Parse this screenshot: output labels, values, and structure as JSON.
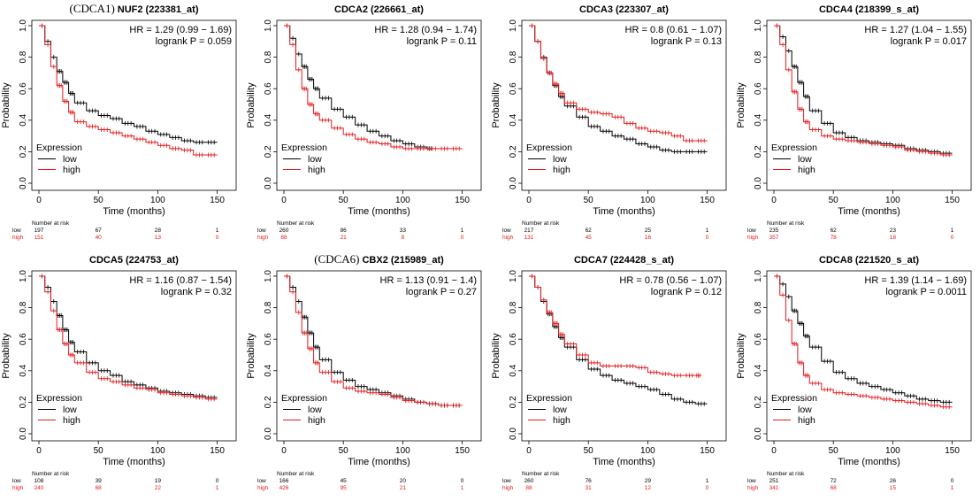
{
  "colors": {
    "low": "#000000",
    "high": "#e41a1c"
  },
  "chart_data": [
    {
      "type": "line",
      "prefix": "(CDCA1)",
      "title": "NUF2 (223381_at)",
      "hr_text": "HR = 1.29 (0.99 − 1.69)",
      "p_text": "logrank P = 0.059",
      "xlabel": "Time (months)",
      "ylabel": "Probability",
      "xlim": [
        0,
        160
      ],
      "ylim": [
        0,
        1
      ],
      "xticks": [
        "0",
        "50",
        "100",
        "150"
      ],
      "yticks": [
        "0.0",
        "0.2",
        "0.4",
        "0.6",
        "0.8",
        "1.0"
      ],
      "legend_title": "Expression",
      "series": [
        {
          "name": "low",
          "x": [
            0,
            5,
            10,
            15,
            20,
            25,
            30,
            40,
            50,
            60,
            70,
            80,
            90,
            100,
            110,
            120,
            130,
            140,
            150
          ],
          "y": [
            1.0,
            0.9,
            0.8,
            0.71,
            0.64,
            0.57,
            0.51,
            0.46,
            0.43,
            0.41,
            0.38,
            0.36,
            0.33,
            0.31,
            0.29,
            0.27,
            0.26,
            0.26,
            0.26
          ]
        },
        {
          "name": "high",
          "x": [
            0,
            5,
            10,
            15,
            20,
            25,
            30,
            40,
            50,
            60,
            70,
            80,
            90,
            100,
            110,
            120,
            130,
            140,
            150
          ],
          "y": [
            1.0,
            0.88,
            0.74,
            0.62,
            0.52,
            0.45,
            0.39,
            0.36,
            0.34,
            0.32,
            0.3,
            0.28,
            0.26,
            0.24,
            0.22,
            0.21,
            0.18,
            0.18,
            0.18
          ]
        }
      ],
      "risk_heading": "Number at risk",
      "risk": [
        {
          "label": "low",
          "values": [
            "197",
            "67",
            "28",
            "1"
          ]
        },
        {
          "label": "high",
          "values": [
            "151",
            "40",
            "13",
            "0"
          ]
        }
      ]
    },
    {
      "type": "line",
      "prefix": "",
      "title": "CDCA2 (226661_at)",
      "hr_text": "HR = 1.28 (0.94 − 1.74)",
      "p_text": "logrank P = 0.11",
      "xlabel": "Time (months)",
      "ylabel": "Probability",
      "xlim": [
        0,
        160
      ],
      "ylim": [
        0,
        1
      ],
      "xticks": [
        "0",
        "50",
        "100",
        "150"
      ],
      "yticks": [
        "0.0",
        "0.2",
        "0.4",
        "0.6",
        "0.8",
        "1.0"
      ],
      "legend_title": "Expression",
      "series": [
        {
          "name": "low",
          "x": [
            0,
            5,
            10,
            15,
            20,
            25,
            30,
            40,
            50,
            60,
            70,
            80,
            90,
            100,
            110,
            120,
            125
          ],
          "y": [
            1.0,
            0.92,
            0.82,
            0.74,
            0.66,
            0.6,
            0.54,
            0.47,
            0.42,
            0.37,
            0.33,
            0.3,
            0.27,
            0.25,
            0.23,
            0.22,
            0.22
          ]
        },
        {
          "name": "high",
          "x": [
            0,
            5,
            10,
            15,
            20,
            25,
            30,
            40,
            50,
            60,
            70,
            80,
            90,
            100,
            110,
            120,
            130,
            140,
            150
          ],
          "y": [
            1.0,
            0.88,
            0.72,
            0.6,
            0.5,
            0.44,
            0.4,
            0.35,
            0.31,
            0.28,
            0.26,
            0.25,
            0.23,
            0.22,
            0.22,
            0.22,
            0.22,
            0.22,
            0.22
          ]
        }
      ],
      "risk_heading": "Number at risk",
      "risk": [
        {
          "label": "low",
          "values": [
            "260",
            "86",
            "33",
            "1"
          ]
        },
        {
          "label": "high",
          "values": [
            "88",
            "21",
            "8",
            "0"
          ]
        }
      ]
    },
    {
      "type": "line",
      "prefix": "",
      "title": "CDCA3 (223307_at)",
      "hr_text": "HR = 0.8 (0.61 − 1.07)",
      "p_text": "logrank P = 0.13",
      "xlabel": "Time (months)",
      "ylabel": "Probability",
      "xlim": [
        0,
        160
      ],
      "ylim": [
        0,
        1
      ],
      "xticks": [
        "0",
        "50",
        "100",
        "150"
      ],
      "yticks": [
        "0.0",
        "0.2",
        "0.4",
        "0.6",
        "0.8",
        "1.0"
      ],
      "legend_title": "Expression",
      "series": [
        {
          "name": "low",
          "x": [
            0,
            5,
            10,
            15,
            20,
            25,
            30,
            40,
            50,
            60,
            70,
            80,
            90,
            100,
            110,
            120,
            130,
            140,
            150
          ],
          "y": [
            1.0,
            0.9,
            0.8,
            0.7,
            0.62,
            0.55,
            0.49,
            0.42,
            0.36,
            0.33,
            0.3,
            0.28,
            0.25,
            0.23,
            0.21,
            0.2,
            0.2,
            0.2,
            0.2
          ]
        },
        {
          "name": "high",
          "x": [
            0,
            5,
            10,
            15,
            20,
            25,
            30,
            40,
            50,
            60,
            70,
            80,
            90,
            100,
            110,
            120,
            130,
            140,
            150
          ],
          "y": [
            1.0,
            0.9,
            0.79,
            0.7,
            0.63,
            0.57,
            0.51,
            0.47,
            0.45,
            0.44,
            0.42,
            0.38,
            0.35,
            0.33,
            0.32,
            0.3,
            0.27,
            0.27,
            0.27
          ]
        }
      ],
      "risk_heading": "Number at risk",
      "risk": [
        {
          "label": "low",
          "values": [
            "217",
            "62",
            "25",
            "1"
          ]
        },
        {
          "label": "high",
          "values": [
            "131",
            "45",
            "16",
            "0"
          ]
        }
      ]
    },
    {
      "type": "line",
      "prefix": "",
      "title": "CDCA4 (218399_s_at)",
      "hr_text": "HR = 1.27 (1.04 − 1.55)",
      "p_text": "logrank P = 0.017",
      "xlabel": "Time (months)",
      "ylabel": "Probability",
      "xlim": [
        0,
        160
      ],
      "ylim": [
        0,
        1
      ],
      "xticks": [
        "0",
        "50",
        "100",
        "150"
      ],
      "yticks": [
        "0.0",
        "0.2",
        "0.4",
        "0.6",
        "0.8",
        "1.0"
      ],
      "legend_title": "Expression",
      "series": [
        {
          "name": "low",
          "x": [
            0,
            5,
            10,
            15,
            20,
            25,
            30,
            40,
            50,
            60,
            70,
            80,
            90,
            100,
            110,
            120,
            130,
            140,
            150
          ],
          "y": [
            1.0,
            0.93,
            0.84,
            0.74,
            0.64,
            0.55,
            0.46,
            0.38,
            0.32,
            0.29,
            0.27,
            0.26,
            0.25,
            0.24,
            0.22,
            0.21,
            0.2,
            0.19,
            0.19
          ]
        },
        {
          "name": "high",
          "x": [
            0,
            5,
            10,
            15,
            20,
            25,
            30,
            40,
            50,
            60,
            70,
            80,
            90,
            100,
            110,
            120,
            130,
            140,
            150
          ],
          "y": [
            1.0,
            0.88,
            0.72,
            0.58,
            0.47,
            0.39,
            0.34,
            0.3,
            0.28,
            0.27,
            0.26,
            0.25,
            0.24,
            0.23,
            0.21,
            0.2,
            0.19,
            0.18,
            0.18
          ]
        }
      ],
      "risk_heading": "Number at risk",
      "risk": [
        {
          "label": "low",
          "values": [
            "235",
            "62",
            "23",
            "1"
          ]
        },
        {
          "label": "high",
          "values": [
            "357",
            "78",
            "18",
            "0"
          ]
        }
      ]
    },
    {
      "type": "line",
      "prefix": "",
      "title": "CDCA5 (224753_at)",
      "hr_text": "HR = 1.16 (0.87 − 1.54)",
      "p_text": "logrank P = 0.32",
      "xlabel": "Time (months)",
      "ylabel": "Probability",
      "xlim": [
        0,
        160
      ],
      "ylim": [
        0,
        1
      ],
      "xticks": [
        "0",
        "50",
        "100",
        "150"
      ],
      "yticks": [
        "0.0",
        "0.2",
        "0.4",
        "0.6",
        "0.8",
        "1.0"
      ],
      "legend_title": "Expression",
      "series": [
        {
          "name": "low",
          "x": [
            0,
            5,
            10,
            15,
            20,
            25,
            30,
            40,
            50,
            60,
            70,
            80,
            90,
            100,
            110,
            120,
            130,
            140,
            150
          ],
          "y": [
            1.0,
            0.93,
            0.84,
            0.75,
            0.66,
            0.58,
            0.52,
            0.45,
            0.4,
            0.37,
            0.33,
            0.31,
            0.29,
            0.27,
            0.26,
            0.25,
            0.24,
            0.23,
            0.23
          ]
        },
        {
          "name": "high",
          "x": [
            0,
            5,
            10,
            15,
            20,
            25,
            30,
            40,
            50,
            60,
            70,
            80,
            90,
            100,
            110,
            120,
            130,
            140,
            150
          ],
          "y": [
            1.0,
            0.9,
            0.78,
            0.66,
            0.57,
            0.5,
            0.45,
            0.39,
            0.35,
            0.33,
            0.31,
            0.29,
            0.28,
            0.26,
            0.25,
            0.24,
            0.23,
            0.22,
            0.22
          ]
        }
      ],
      "risk_heading": "Number at risk",
      "risk": [
        {
          "label": "low",
          "values": [
            "108",
            "39",
            "19",
            "0"
          ]
        },
        {
          "label": "high",
          "values": [
            "240",
            "68",
            "22",
            "1"
          ]
        }
      ]
    },
    {
      "type": "line",
      "prefix": "(CDCA6)",
      "title": "CBX2 (215989_at)",
      "hr_text": "HR = 1.13 (0.91 − 1.4)",
      "p_text": "logrank P = 0.27",
      "xlabel": "Time (months)",
      "ylabel": "Probability",
      "xlim": [
        0,
        160
      ],
      "ylim": [
        0,
        1
      ],
      "xticks": [
        "0",
        "50",
        "100",
        "150"
      ],
      "yticks": [
        "0.0",
        "0.2",
        "0.4",
        "0.6",
        "0.8",
        "1.0"
      ],
      "legend_title": "Expression",
      "series": [
        {
          "name": "low",
          "x": [
            0,
            5,
            10,
            15,
            20,
            25,
            30,
            40,
            50,
            60,
            70,
            80,
            90,
            100,
            110,
            120,
            130,
            140,
            150
          ],
          "y": [
            1.0,
            0.93,
            0.84,
            0.74,
            0.64,
            0.55,
            0.47,
            0.39,
            0.34,
            0.3,
            0.28,
            0.26,
            0.24,
            0.22,
            0.2,
            0.19,
            0.18,
            0.18,
            0.18
          ]
        },
        {
          "name": "high",
          "x": [
            0,
            5,
            10,
            15,
            20,
            25,
            30,
            40,
            50,
            60,
            70,
            80,
            90,
            100,
            110,
            120,
            130,
            140,
            150
          ],
          "y": [
            1.0,
            0.9,
            0.77,
            0.64,
            0.54,
            0.45,
            0.39,
            0.33,
            0.29,
            0.27,
            0.26,
            0.25,
            0.23,
            0.21,
            0.2,
            0.19,
            0.18,
            0.18,
            0.18
          ]
        }
      ],
      "risk_heading": "Number at risk",
      "risk": [
        {
          "label": "low",
          "values": [
            "166",
            "45",
            "20",
            "0"
          ]
        },
        {
          "label": "high",
          "values": [
            "426",
            "95",
            "21",
            "1"
          ]
        }
      ]
    },
    {
      "type": "line",
      "prefix": "",
      "title": "CDCA7 (224428_s_at)",
      "hr_text": "HR = 0.78 (0.56 − 1.07)",
      "p_text": "logrank P = 0.12",
      "xlabel": "Time (months)",
      "ylabel": "Probability",
      "xlim": [
        0,
        160
      ],
      "ylim": [
        0,
        1
      ],
      "xticks": [
        "0",
        "50",
        "100",
        "150"
      ],
      "yticks": [
        "0.0",
        "0.2",
        "0.4",
        "0.6",
        "0.8",
        "1.0"
      ],
      "legend_title": "Expression",
      "series": [
        {
          "name": "low",
          "x": [
            0,
            5,
            10,
            15,
            20,
            25,
            30,
            40,
            50,
            60,
            70,
            80,
            90,
            100,
            110,
            120,
            130,
            140,
            150
          ],
          "y": [
            1.0,
            0.93,
            0.84,
            0.76,
            0.68,
            0.61,
            0.55,
            0.47,
            0.41,
            0.37,
            0.34,
            0.32,
            0.3,
            0.28,
            0.25,
            0.22,
            0.2,
            0.19,
            0.19
          ]
        },
        {
          "name": "high",
          "x": [
            0,
            5,
            10,
            15,
            20,
            25,
            30,
            40,
            50,
            60,
            70,
            80,
            90,
            100,
            110,
            120,
            130,
            140,
            145
          ],
          "y": [
            1.0,
            0.93,
            0.85,
            0.77,
            0.7,
            0.63,
            0.57,
            0.5,
            0.45,
            0.43,
            0.43,
            0.43,
            0.42,
            0.39,
            0.38,
            0.37,
            0.37,
            0.37,
            0.37
          ]
        }
      ],
      "risk_heading": "Number at risk",
      "risk": [
        {
          "label": "low",
          "values": [
            "260",
            "76",
            "29",
            "1"
          ]
        },
        {
          "label": "high",
          "values": [
            "88",
            "31",
            "12",
            "0"
          ]
        }
      ]
    },
    {
      "type": "line",
      "prefix": "",
      "title": "CDCA8 (221520_s_at)",
      "hr_text": "HR = 1.39 (1.14 − 1.69)",
      "p_text": "logrank P = 0.0011",
      "xlabel": "Time (months)",
      "ylabel": "Probability",
      "xlim": [
        0,
        160
      ],
      "ylim": [
        0,
        1
      ],
      "xticks": [
        "0",
        "50",
        "100",
        "150"
      ],
      "yticks": [
        "0.0",
        "0.2",
        "0.4",
        "0.6",
        "0.8",
        "1.0"
      ],
      "legend_title": "Expression",
      "series": [
        {
          "name": "low",
          "x": [
            0,
            5,
            10,
            15,
            20,
            25,
            30,
            40,
            50,
            60,
            70,
            80,
            90,
            100,
            110,
            120,
            130,
            140,
            150
          ],
          "y": [
            1.0,
            0.95,
            0.87,
            0.78,
            0.7,
            0.62,
            0.55,
            0.46,
            0.39,
            0.35,
            0.32,
            0.3,
            0.28,
            0.26,
            0.24,
            0.22,
            0.21,
            0.2,
            0.2
          ]
        },
        {
          "name": "high",
          "x": [
            0,
            5,
            10,
            15,
            20,
            25,
            30,
            40,
            50,
            60,
            70,
            80,
            90,
            100,
            110,
            120,
            130,
            140,
            150
          ],
          "y": [
            1.0,
            0.88,
            0.72,
            0.57,
            0.45,
            0.37,
            0.32,
            0.28,
            0.26,
            0.25,
            0.24,
            0.23,
            0.22,
            0.21,
            0.2,
            0.19,
            0.18,
            0.17,
            0.17
          ]
        }
      ],
      "risk_heading": "Number at risk",
      "risk": [
        {
          "label": "low",
          "values": [
            "251",
            "72",
            "26",
            "0"
          ]
        },
        {
          "label": "high",
          "values": [
            "341",
            "68",
            "15",
            "1"
          ]
        }
      ]
    }
  ]
}
